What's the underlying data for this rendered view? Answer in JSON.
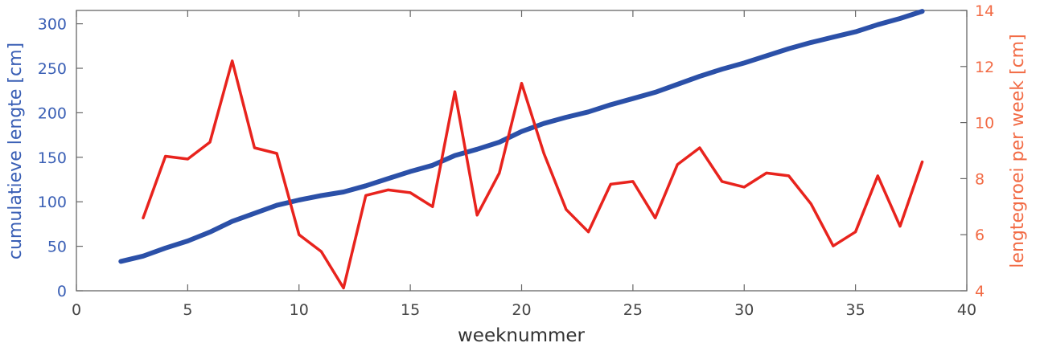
{
  "chart_data": {
    "type": "line",
    "xlabel": "weeknummer",
    "ylabel_left": "cumulatieve lengte [cm]",
    "ylabel_right": "lengtegroei per week [cm]",
    "xlim": [
      0,
      40
    ],
    "ylim_left": [
      0,
      315
    ],
    "ylim_right": [
      4,
      14
    ],
    "x_ticks": [
      0,
      5,
      10,
      15,
      20,
      25,
      30,
      35,
      40
    ],
    "y_left_ticks": [
      0,
      50,
      100,
      150,
      200,
      250,
      300
    ],
    "y_right_ticks": [
      4,
      6,
      8,
      10,
      12,
      14
    ],
    "grid": false,
    "colors": {
      "left": "#2b50a8",
      "right": "#e8231d",
      "left_tick": "#3a5fb5",
      "right_tick": "#f26b45"
    },
    "series": [
      {
        "axis": "left",
        "x": [
          2,
          3,
          4,
          5,
          6,
          7,
          8,
          9,
          10,
          11,
          12,
          13,
          14,
          15,
          16,
          17,
          18,
          19,
          20,
          21,
          22,
          23,
          24,
          25,
          26,
          27,
          28,
          29,
          30,
          31,
          32,
          33,
          34,
          35,
          36,
          37,
          38
        ],
        "values": [
          33,
          39,
          48,
          56,
          66,
          78,
          87,
          96,
          102,
          107,
          111,
          118,
          126,
          134,
          141,
          152,
          159,
          167,
          179,
          188,
          195,
          201,
          209,
          216,
          223,
          232,
          241,
          249,
          256,
          264,
          272,
          279,
          285,
          291,
          299,
          306,
          314
        ]
      },
      {
        "axis": "right",
        "x": [
          3,
          4,
          5,
          6,
          7,
          8,
          9,
          10,
          11,
          12,
          13,
          14,
          15,
          16,
          17,
          18,
          19,
          20,
          21,
          22,
          23,
          24,
          25,
          26,
          27,
          28,
          29,
          30,
          31,
          32,
          33,
          34,
          35,
          36,
          37,
          38
        ],
        "values": [
          6.6,
          8.8,
          8.7,
          9.3,
          12.2,
          9.1,
          8.9,
          6.0,
          5.4,
          4.1,
          7.4,
          7.6,
          7.5,
          7.0,
          11.1,
          6.7,
          8.2,
          11.4,
          8.9,
          6.9,
          6.1,
          7.8,
          7.9,
          6.6,
          8.5,
          9.1,
          7.9,
          7.7,
          8.2,
          8.1,
          7.1,
          5.6,
          6.1,
          8.1,
          6.3,
          8.6
        ]
      }
    ]
  }
}
